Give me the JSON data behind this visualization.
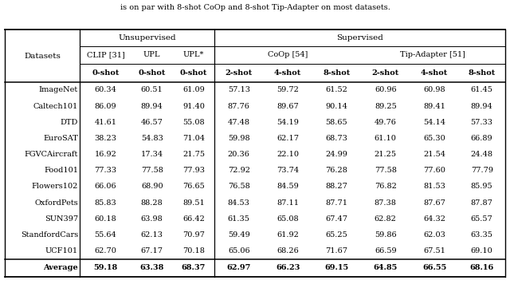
{
  "title_text": "is on par with 8-shot CoOp and 8-shot Tip-Adapter on most datasets.",
  "datasets": [
    "ImageNet",
    "Caltech101",
    "DTD",
    "EuroSAT",
    "FGVCAircraft",
    "Food101",
    "Flowers102",
    "OxfordPets",
    "SUN397",
    "StandfordCars",
    "UCF101"
  ],
  "data": [
    [
      60.34,
      60.51,
      61.09,
      57.13,
      59.72,
      61.52,
      60.96,
      60.98,
      61.45
    ],
    [
      86.09,
      89.94,
      91.4,
      87.76,
      89.67,
      90.14,
      89.25,
      89.41,
      89.94
    ],
    [
      41.61,
      46.57,
      55.08,
      47.48,
      54.19,
      58.65,
      49.76,
      54.14,
      57.33
    ],
    [
      38.23,
      54.83,
      71.04,
      59.98,
      62.17,
      68.73,
      61.1,
      65.3,
      66.89
    ],
    [
      16.92,
      17.34,
      21.75,
      20.36,
      22.1,
      24.99,
      21.25,
      21.54,
      24.48
    ],
    [
      77.33,
      77.58,
      77.93,
      72.92,
      73.74,
      76.28,
      77.58,
      77.6,
      77.79
    ],
    [
      66.06,
      68.9,
      76.65,
      76.58,
      84.59,
      88.27,
      76.82,
      81.53,
      85.95
    ],
    [
      85.83,
      88.28,
      89.51,
      84.53,
      87.11,
      87.71,
      87.38,
      87.67,
      87.87
    ],
    [
      60.18,
      63.98,
      66.42,
      61.35,
      65.08,
      67.47,
      62.82,
      64.32,
      65.57
    ],
    [
      55.64,
      62.13,
      70.97,
      59.49,
      61.92,
      65.25,
      59.86,
      62.03,
      63.35
    ],
    [
      62.7,
      67.17,
      70.18,
      65.06,
      68.26,
      71.67,
      66.59,
      67.51,
      69.1
    ]
  ],
  "average": [
    59.18,
    63.38,
    68.37,
    62.97,
    66.23,
    69.15,
    64.85,
    66.55,
    68.16
  ],
  "bg_color": "#ffffff",
  "text_color": "#000000",
  "fs_data": 7.0,
  "fs_header": 7.5
}
